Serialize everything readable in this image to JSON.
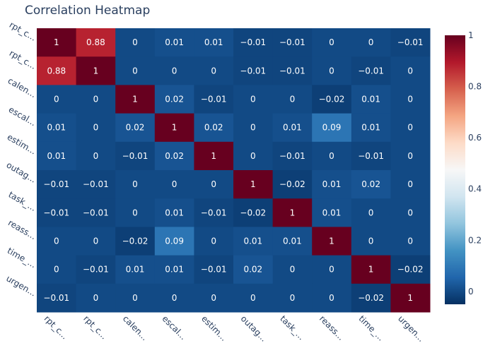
{
  "chart_data": {
    "type": "heatmap",
    "title": "Correlation Heatmap",
    "x_labels": [
      "rpt_c...",
      "rpt_c...",
      "calen...",
      "escal...",
      "estim...",
      "outag...",
      "task_...",
      "reass...",
      "time_...",
      "urgen..."
    ],
    "y_labels": [
      "rpt_c...",
      "rpt_c...",
      "calen...",
      "escal...",
      "estim...",
      "outag...",
      "task_...",
      "reass...",
      "time_...",
      "urgen..."
    ],
    "values": [
      [
        1,
        0.88,
        0,
        0.01,
        0.01,
        -0.01,
        -0.01,
        0,
        0,
        -0.01
      ],
      [
        0.88,
        1,
        0,
        0,
        0,
        -0.01,
        -0.01,
        0,
        -0.01,
        0
      ],
      [
        0,
        0,
        1,
        0.02,
        -0.01,
        0,
        0,
        -0.02,
        0.01,
        0
      ],
      [
        0.01,
        0,
        0.02,
        1,
        0.02,
        0,
        0.01,
        0.09,
        0.01,
        0
      ],
      [
        0.01,
        0,
        -0.01,
        0.02,
        1,
        0,
        -0.01,
        0,
        -0.01,
        0
      ],
      [
        -0.01,
        -0.01,
        0,
        0,
        0,
        1,
        -0.02,
        0.01,
        0.02,
        0
      ],
      [
        -0.01,
        -0.01,
        0,
        0.01,
        -0.01,
        -0.02,
        1,
        0.01,
        0,
        0
      ],
      [
        0,
        0,
        -0.02,
        0.09,
        0,
        0.01,
        0.01,
        1,
        0,
        0
      ],
      [
        0,
        -0.01,
        0.01,
        0.01,
        -0.01,
        0.02,
        0,
        0,
        1,
        -0.02
      ],
      [
        -0.01,
        0,
        0,
        0,
        0,
        0,
        0,
        0,
        -0.02,
        1
      ]
    ],
    "cell_text": [
      [
        "1",
        "0.88",
        "0",
        "0.01",
        "0.01",
        "−0.01",
        "−0.01",
        "0",
        "0",
        "−0.01"
      ],
      [
        "0.88",
        "1",
        "0",
        "0",
        "0",
        "−0.01",
        "−0.01",
        "0",
        "−0.01",
        "0"
      ],
      [
        "0",
        "0",
        "1",
        "0.02",
        "−0.01",
        "0",
        "0",
        "−0.02",
        "0.01",
        "0"
      ],
      [
        "0.01",
        "0",
        "0.02",
        "1",
        "0.02",
        "0",
        "0.01",
        "0.09",
        "0.01",
        "0"
      ],
      [
        "0.01",
        "0",
        "−0.01",
        "0.02",
        "1",
        "0",
        "−0.01",
        "0",
        "−0.01",
        "0"
      ],
      [
        "−0.01",
        "−0.01",
        "0",
        "0",
        "0",
        "1",
        "−0.02",
        "0.01",
        "0.02",
        "0"
      ],
      [
        "−0.01",
        "−0.01",
        "0",
        "0.01",
        "−0.01",
        "−0.02",
        "1",
        "0.01",
        "0",
        "0"
      ],
      [
        "0",
        "0",
        "−0.02",
        "0.09",
        "0",
        "0.01",
        "0.01",
        "1",
        "0",
        "0"
      ],
      [
        "0",
        "−0.01",
        "0.01",
        "0.01",
        "−0.01",
        "0.02",
        "0",
        "0",
        "1",
        "−0.02"
      ],
      [
        "−0.01",
        "0",
        "0",
        "0",
        "0",
        "0",
        "0",
        "0",
        "−0.02",
        "1"
      ]
    ],
    "colorscale": {
      "name": "RdBu (reversed)",
      "zmin": -0.05,
      "zmax": 1,
      "stops": [
        [
          0,
          "#053061"
        ],
        [
          0.1,
          "#2166ac"
        ],
        [
          0.2,
          "#4393c3"
        ],
        [
          0.3,
          "#92c5de"
        ],
        [
          0.4,
          "#d1e5f0"
        ],
        [
          0.5,
          "#f7f7f7"
        ],
        [
          0.6,
          "#fddbc7"
        ],
        [
          0.7,
          "#f4a582"
        ],
        [
          0.8,
          "#d6604d"
        ],
        [
          0.9,
          "#b2182b"
        ],
        [
          1,
          "#67001f"
        ]
      ]
    },
    "colorbar": {
      "tickvals": [
        0,
        0.2,
        0.4,
        0.6,
        0.8,
        1
      ],
      "ticktext": [
        "0",
        "0.2",
        "0.4",
        "0.6",
        "0.8",
        "1"
      ]
    },
    "grid": false
  }
}
